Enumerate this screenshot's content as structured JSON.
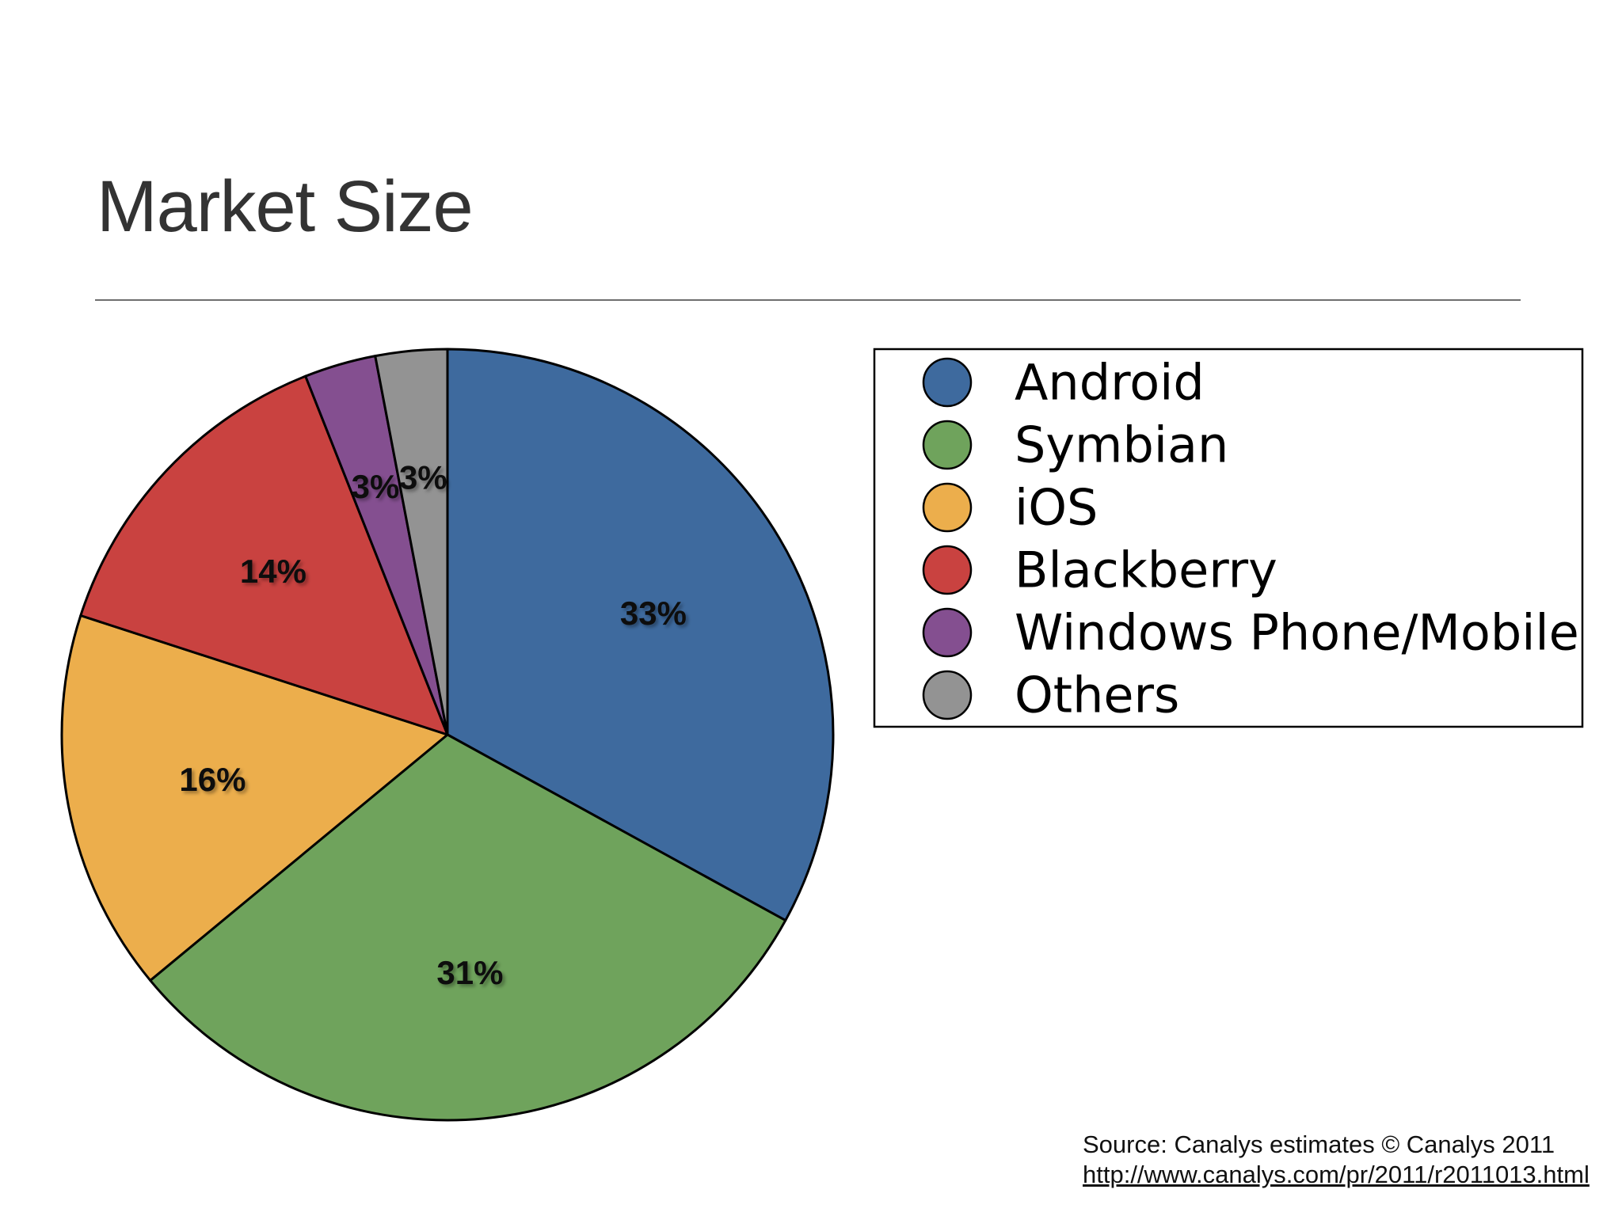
{
  "slide": {
    "title": "Market Size"
  },
  "chart_data": {
    "type": "pie",
    "categories": [
      "Android",
      "Symbian",
      "iOS",
      "Blackberry",
      "Windows Phone/Mobile",
      "Others"
    ],
    "values": [
      33,
      31,
      16,
      14,
      3,
      3
    ],
    "data_labels": [
      "33%",
      "31%",
      "16%",
      "14%",
      "3%",
      "3%"
    ],
    "colors": [
      "#3e6a9e",
      "#6fa35c",
      "#ecae4c",
      "#c94240",
      "#844f90",
      "#939393"
    ],
    "legend": "right",
    "legend_entries": [
      "Android",
      "Symbian",
      "iOS",
      "Blackberry",
      "Windows Phone/Mobile",
      "Others"
    ]
  },
  "source": {
    "text": "Source: Canalys estimates © Canalys 2011",
    "link": "http://www.canalys.com/pr/2011/r2011013.html"
  }
}
